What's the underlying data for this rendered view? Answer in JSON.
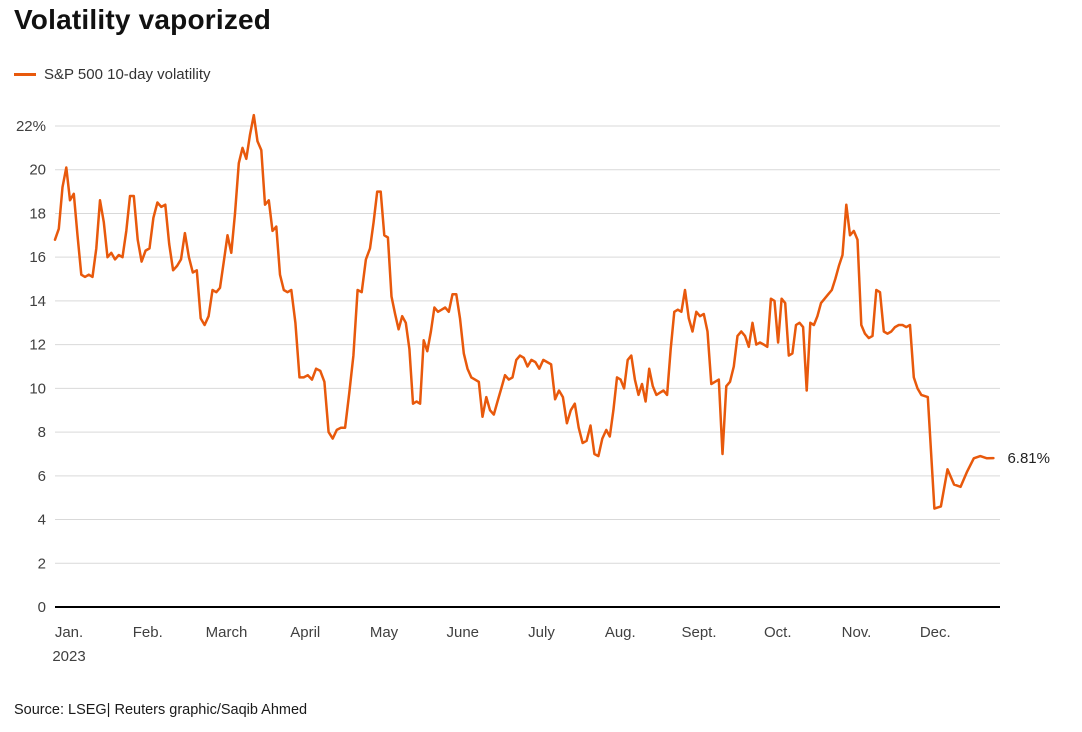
{
  "title": "Volatility vaporized",
  "legend": {
    "label": "S&P 500 10-day volatility",
    "color": "#e8590c"
  },
  "end_label": "6.81%",
  "source": "Source: LSEG| Reuters graphic/Saqib Ahmed",
  "chart_data": {
    "type": "line",
    "title": "Volatility vaporized",
    "xlabel": "",
    "ylabel": "",
    "ylim": [
      0,
      22
    ],
    "ytick_interval": 2,
    "ytick_labels": [
      "0",
      "2",
      "4",
      "6",
      "8",
      "10",
      "12",
      "14",
      "16",
      "18",
      "20",
      "22%"
    ],
    "x_months": [
      "Jan.",
      "Feb.",
      "March",
      "April",
      "May",
      "June",
      "July",
      "Aug.",
      "Sept.",
      "Oct.",
      "Nov.",
      "Dec."
    ],
    "x_sublabel": "2023",
    "grid": true,
    "legend_position": "top-left",
    "last_value": 6.81,
    "series": [
      {
        "name": "S&P 500 10-day volatility",
        "color": "#e8590c",
        "values_by_month": [
          [
            16.8,
            17.3,
            19.2,
            20.1,
            18.6,
            18.9,
            17.0,
            15.2,
            15.1,
            15.2,
            15.1,
            16.4,
            18.6,
            17.6,
            16.0,
            16.2,
            15.9,
            16.1,
            16.0,
            17.2,
            18.8
          ],
          [
            18.8,
            16.8,
            15.8,
            16.3,
            16.4,
            17.8,
            18.5,
            18.3,
            18.4,
            16.6,
            15.4,
            15.6,
            15.9,
            17.1,
            16.0,
            15.3,
            15.4,
            13.2,
            12.9,
            13.3
          ],
          [
            14.5,
            14.4,
            14.6,
            15.8,
            17.0,
            16.2,
            18.0,
            20.3,
            21.0,
            20.5,
            21.6,
            22.5,
            21.3,
            20.9,
            18.4,
            18.6,
            17.2,
            17.4,
            15.2,
            14.5,
            14.4
          ],
          [
            14.5,
            13.0,
            10.5,
            10.5,
            10.6,
            10.4,
            10.9,
            10.8,
            10.3,
            8.0,
            7.7,
            8.1,
            8.2,
            8.2,
            9.8,
            11.5,
            14.5,
            14.4,
            15.9
          ],
          [
            16.4,
            17.6,
            19.0,
            19.0,
            17.0,
            16.9,
            14.2,
            13.4,
            12.7,
            13.3,
            13.0,
            11.8,
            9.3,
            9.4,
            9.3,
            12.2,
            11.7,
            12.6,
            13.7,
            13.5,
            13.6,
            13.7
          ],
          [
            13.5,
            14.3,
            14.3,
            13.2,
            11.6,
            10.9,
            10.5,
            10.4,
            10.3,
            8.7,
            9.6,
            9.0,
            8.8,
            9.4,
            10.0,
            10.6,
            10.4,
            10.5,
            11.3,
            11.5,
            11.4
          ],
          [
            11.0,
            11.3,
            11.2,
            10.9,
            11.3,
            11.2,
            11.1,
            9.5,
            9.9,
            9.6,
            8.4,
            9.0,
            9.3,
            8.2,
            7.5,
            7.6,
            8.3,
            7.0,
            6.9,
            7.7
          ],
          [
            8.1,
            7.8,
            9.0,
            10.5,
            10.4,
            10.0,
            11.3,
            11.5,
            10.4,
            9.7,
            10.2,
            9.4,
            10.9,
            10.1,
            9.7,
            9.8,
            9.9,
            9.7,
            11.8,
            13.5,
            13.6,
            13.5
          ],
          [
            14.5,
            13.2,
            12.6,
            13.5,
            13.3,
            13.4,
            12.6,
            10.2,
            10.3,
            10.4,
            7.0,
            10.1,
            10.3,
            11.0,
            12.4,
            12.6,
            12.4,
            11.9,
            13.0,
            12.0,
            12.1
          ],
          [
            12.0,
            11.9,
            14.1,
            14.0,
            12.1,
            14.1,
            13.9,
            11.5,
            11.6,
            12.9,
            13.0,
            12.8,
            9.9,
            13.0,
            12.9,
            13.3,
            13.9,
            14.1,
            14.3,
            14.5,
            15.0,
            15.6
          ],
          [
            16.1,
            18.4,
            17.0,
            17.2,
            16.8,
            12.9,
            12.5,
            12.3,
            12.4,
            14.5,
            14.4,
            12.6,
            12.5,
            12.6,
            12.8,
            12.9,
            12.9,
            12.8,
            12.9,
            10.5,
            10.0
          ],
          [
            9.7,
            9.6,
            4.5,
            4.6,
            6.3,
            5.6,
            5.5,
            6.2,
            6.8,
            6.9,
            6.8,
            6.81
          ]
        ]
      }
    ]
  }
}
